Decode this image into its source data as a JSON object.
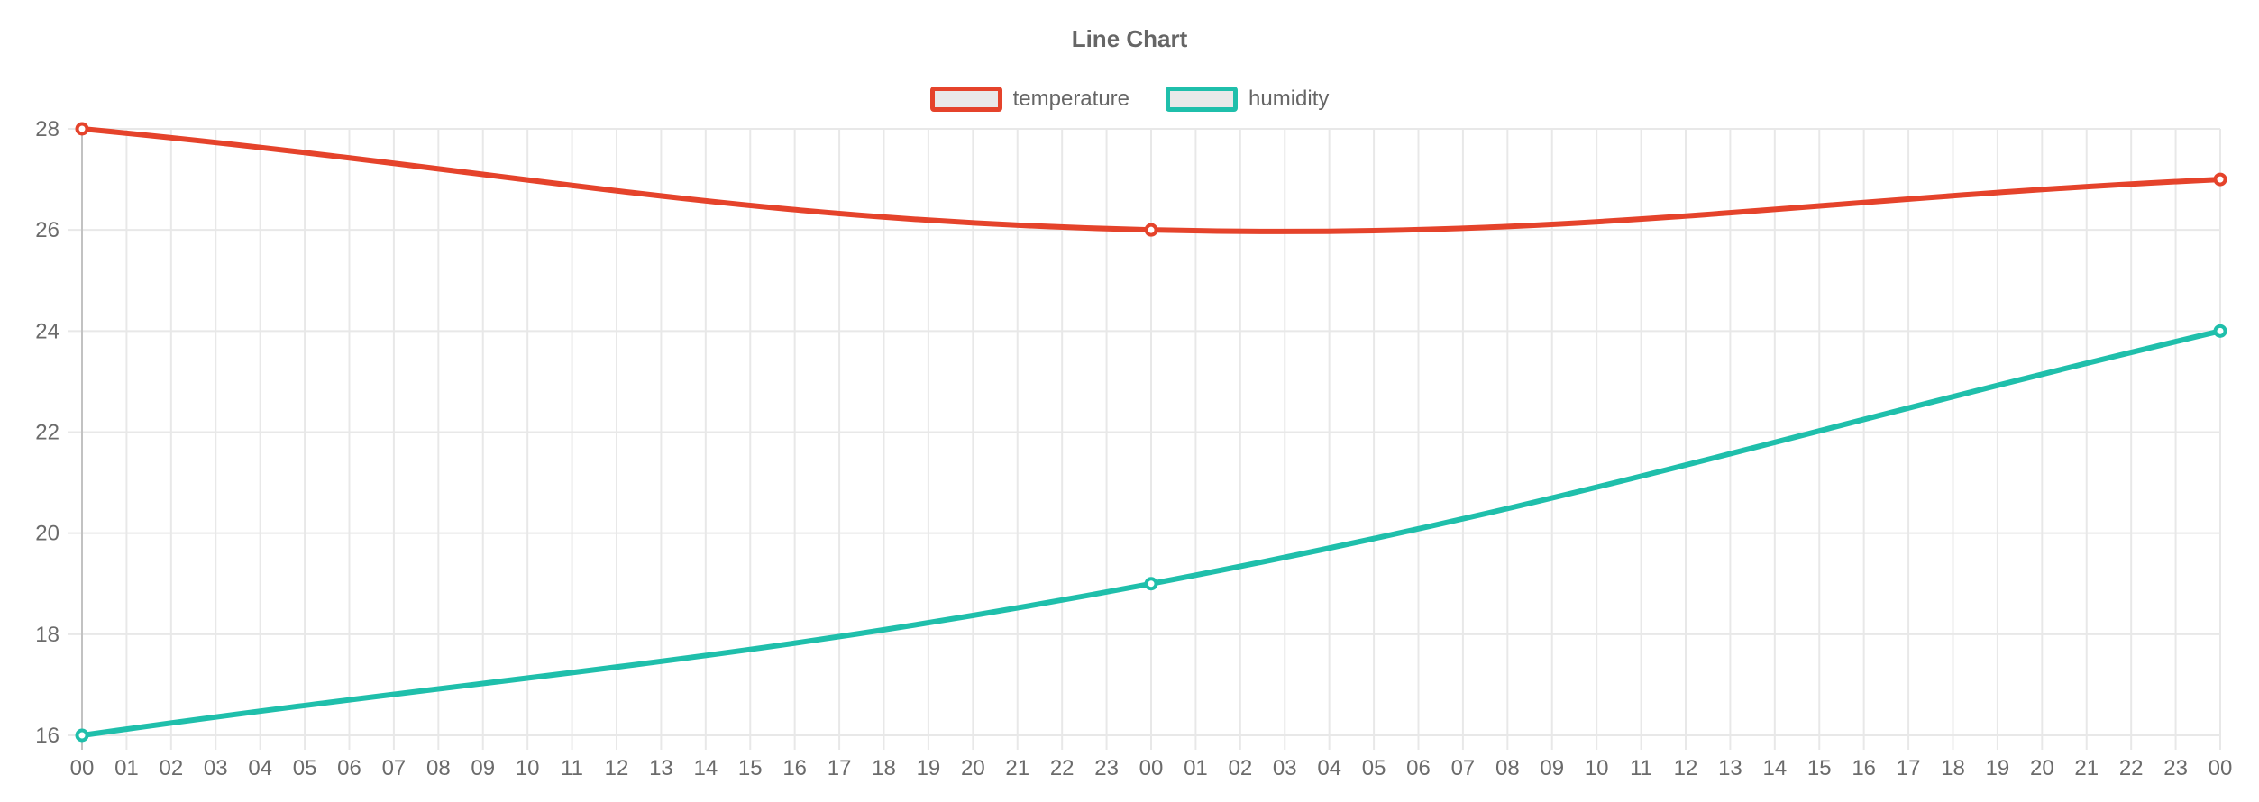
{
  "chart_data": {
    "type": "line",
    "title": "Line Chart",
    "xlabel": "",
    "ylabel": "",
    "x_labels": [
      "00",
      "01",
      "02",
      "03",
      "04",
      "05",
      "06",
      "07",
      "08",
      "09",
      "10",
      "11",
      "12",
      "13",
      "14",
      "15",
      "16",
      "17",
      "18",
      "19",
      "20",
      "21",
      "22",
      "23",
      "00",
      "01",
      "02",
      "03",
      "04",
      "05",
      "06",
      "07",
      "08",
      "09",
      "10",
      "11",
      "12",
      "13",
      "14",
      "15",
      "16",
      "17",
      "18",
      "19",
      "20",
      "21",
      "22",
      "23",
      "00"
    ],
    "y_ticks": [
      16,
      18,
      20,
      22,
      24,
      26,
      28
    ],
    "ylim": [
      16,
      28
    ],
    "grid": true,
    "legend_position": "top",
    "series": [
      {
        "name": "temperature",
        "color": "#e5432b",
        "points": [
          {
            "index": 0,
            "label": "00",
            "value": 28
          },
          {
            "index": 24,
            "label": "00",
            "value": 26
          },
          {
            "index": 48,
            "label": "00",
            "value": 27
          }
        ]
      },
      {
        "name": "humidity",
        "color": "#1fbfab",
        "points": [
          {
            "index": 0,
            "label": "00",
            "value": 16
          },
          {
            "index": 24,
            "label": "00",
            "value": 19
          },
          {
            "index": 48,
            "label": "00",
            "value": 24
          }
        ]
      }
    ],
    "style": {
      "grid_color": "#e8e8e8",
      "grid_first_line_color": "#c2c2c2",
      "tick_text_color": "#6b6b6b",
      "legend_box_fill": "#e9e9e9",
      "point_fill": "#ffffff",
      "background": "#ffffff"
    }
  }
}
